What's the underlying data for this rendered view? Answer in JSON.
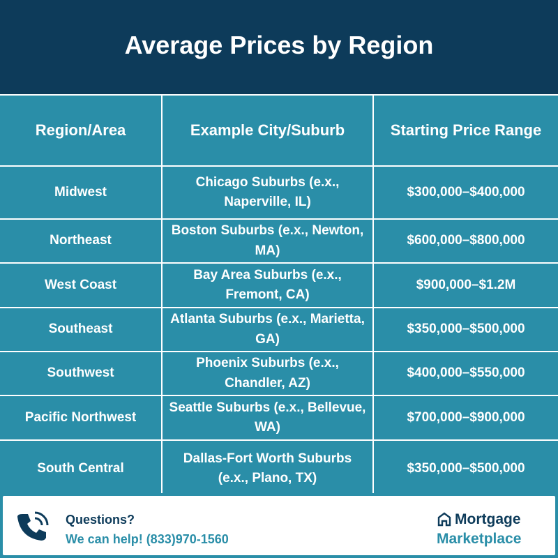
{
  "header": {
    "title": "Average Prices by Region"
  },
  "table": {
    "headers": [
      "Region/Area",
      "Example City/Suburb",
      "Starting Price Range"
    ],
    "rows": [
      [
        "Midwest",
        "Chicago Suburbs (e.x., Naperville, IL)",
        "$300,000–$400,000"
      ],
      [
        "Northeast",
        "Boston Suburbs (e.x., Newton, MA)",
        "$600,000–$800,000"
      ],
      [
        "West Coast",
        "Bay Area Suburbs (e.x., Fremont, CA)",
        "$900,000–$1.2M"
      ],
      [
        "Southeast",
        "Atlanta Suburbs (e.x., Marietta, GA)",
        "$350,000–$500,000"
      ],
      [
        "Southwest",
        "Phoenix Suburbs (e.x., Chandler, AZ)",
        "$400,000–$550,000"
      ],
      [
        "Pacific Northwest",
        "Seattle Suburbs (e.x., Bellevue, WA)",
        "$700,000–$900,000"
      ],
      [
        "South Central",
        "Dallas-Fort Worth Suburbs (e.x., Plano, TX)",
        "$350,000–$500,000"
      ]
    ]
  },
  "footer": {
    "question": "Questions?",
    "help": "We can help! (833)970-1560",
    "logo_top": "Mortgage",
    "logo_bottom": "Marketplace"
  }
}
